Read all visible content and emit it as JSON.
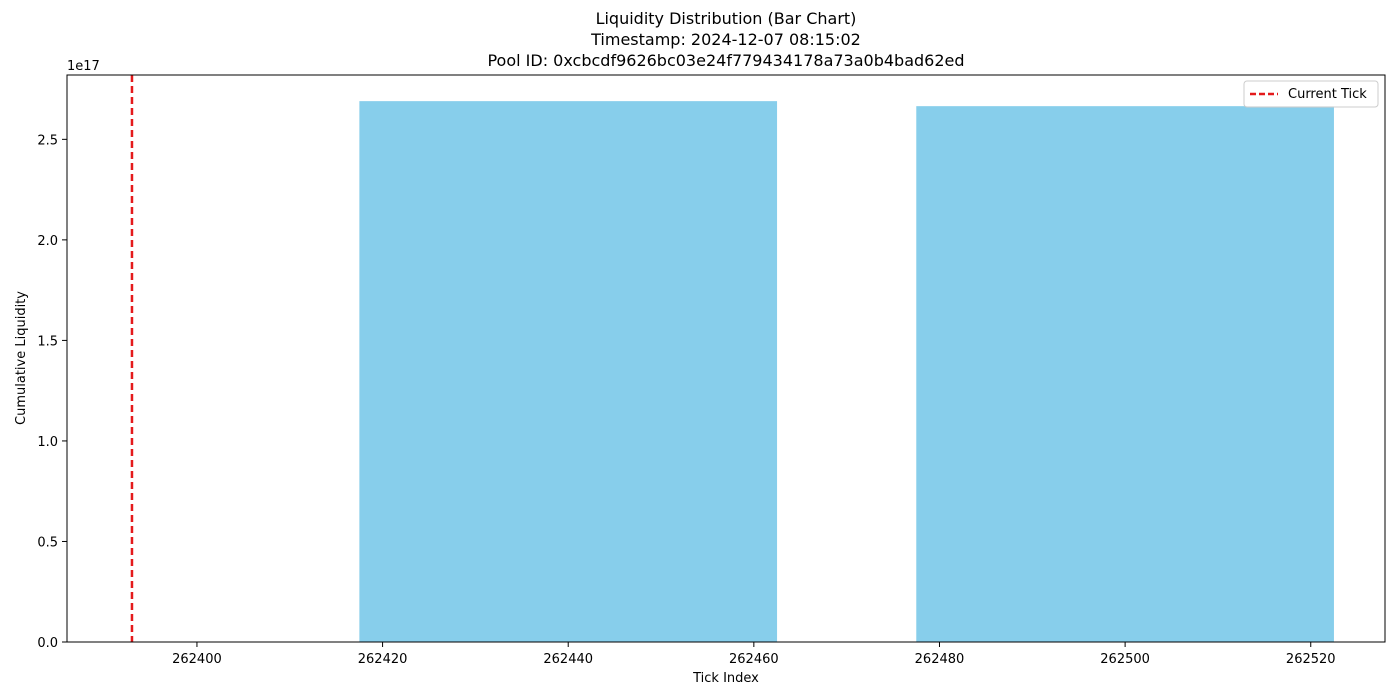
{
  "chart_data": {
    "type": "bar",
    "title_lines": [
      "Liquidity Distribution (Bar Chart)",
      "Timestamp: 2024-12-07 08:15:02",
      "Pool ID: 0xcbcdf9626bc03e24f779434178a73a0b4bad62ed"
    ],
    "xlabel": "Tick Index",
    "ylabel": "Cumulative Liquidity",
    "y_offset_label": "1e17",
    "xlim": [
      262386,
      262528
    ],
    "ylim": [
      0,
      2.82
    ],
    "x_ticks": [
      262400,
      262420,
      262440,
      262460,
      262480,
      262500,
      262520
    ],
    "x_tick_labels": [
      "262400",
      "262420",
      "262440",
      "262460",
      "262480",
      "262500",
      "262520"
    ],
    "y_ticks": [
      0,
      0.5,
      1.0,
      1.5,
      2.0,
      2.5
    ],
    "y_tick_labels": [
      "0.0",
      "0.5",
      "1.0",
      "1.5",
      "2.0",
      "2.5"
    ],
    "bar_width": 45,
    "bars": [
      {
        "x": 262440,
        "value": 2.69
      },
      {
        "x": 262500,
        "value": 2.665
      }
    ],
    "current_tick": 262393,
    "legend": {
      "label": "Current Tick",
      "placement": "top-right"
    },
    "colors": {
      "bar": "#87ceeb",
      "current_tick": "#e41a1c",
      "axis": "#000000"
    },
    "grid": false
  }
}
